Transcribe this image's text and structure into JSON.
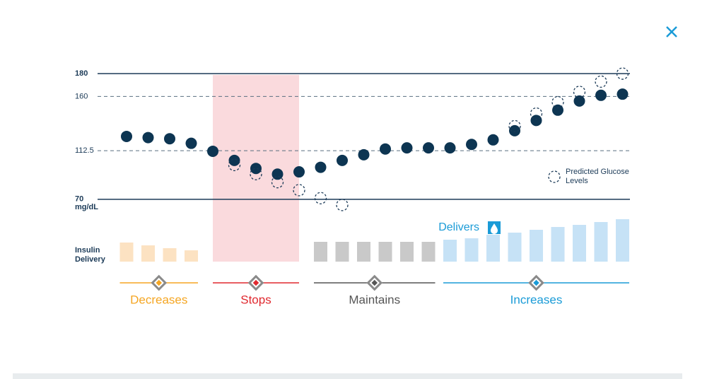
{
  "chart_data": {
    "type": "dot",
    "y_label": "mg/dL",
    "ylim": [
      60,
      185
    ],
    "yticks": [
      70,
      112.5,
      160,
      180
    ],
    "series": [
      {
        "color": "#0d3552",
        "values": [
          125,
          124,
          123,
          119,
          112,
          104,
          97,
          92,
          94,
          98,
          104,
          109,
          114,
          115,
          115,
          115,
          118,
          122,
          130,
          139,
          148,
          156,
          161,
          162
        ]
      },
      {
        "name": "Predicted Glucose Levels",
        "color": "#1b3a57",
        "dashed": true,
        "values": [
          null,
          null,
          null,
          null,
          null,
          100,
          92,
          85,
          78,
          71,
          65,
          null,
          null,
          null,
          null,
          null,
          null,
          null,
          134,
          145,
          155,
          164,
          173,
          180
        ]
      }
    ],
    "insulin": {
      "label": "Insulin Delivery",
      "annotation": "Delivers",
      "phases": [
        {
          "name": "Decreases",
          "color": "#f5a623",
          "bar_color": "#fce2c2",
          "values": [
            27,
            23,
            19,
            16
          ]
        },
        {
          "name": "Stops",
          "color": "#e0282e",
          "bar_color": "#fadadd",
          "band": true,
          "values": [
            0,
            0,
            0,
            0,
            0
          ]
        },
        {
          "name": "Maintains",
          "color": "#555555",
          "bar_color": "#c9c9c9",
          "values": [
            28,
            28,
            28,
            28,
            28,
            28
          ]
        },
        {
          "name": "Increases",
          "color": "#1a9bd7",
          "bar_color": "#c6e2f6",
          "values": [
            31,
            33,
            38,
            41,
            45,
            49,
            52,
            56,
            60
          ]
        }
      ]
    }
  }
}
